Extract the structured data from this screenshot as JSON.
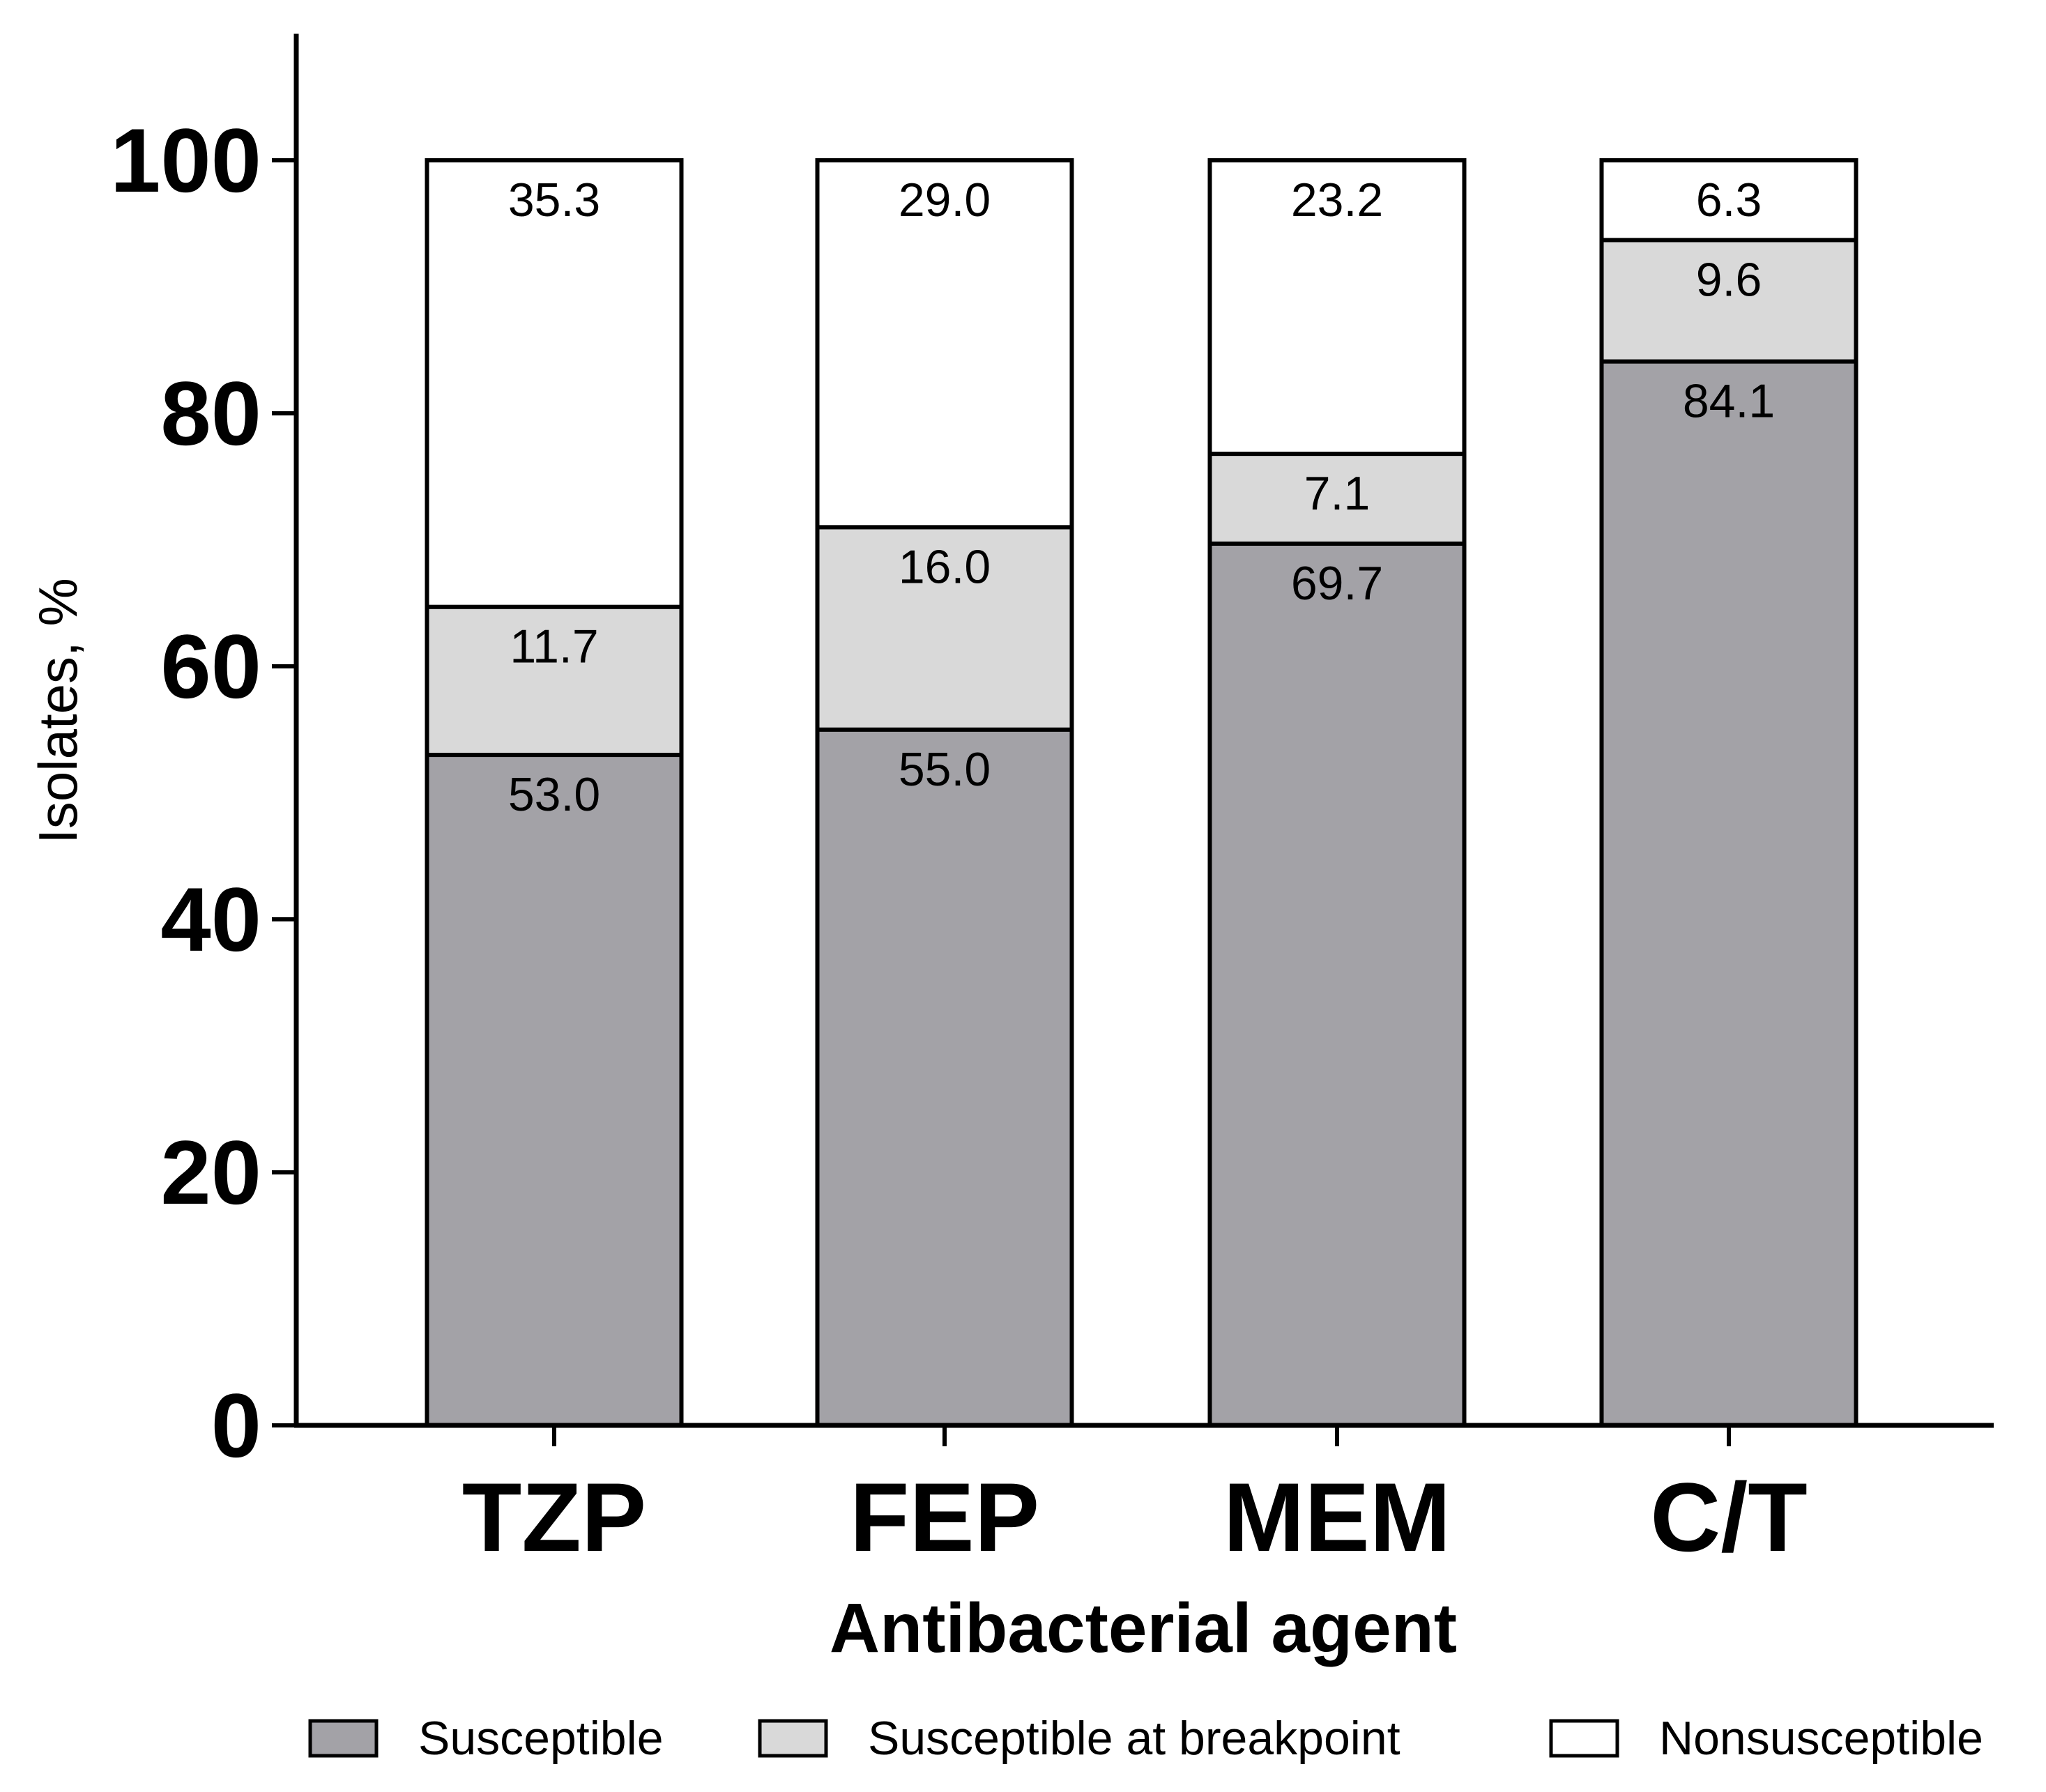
{
  "chart_data": {
    "type": "bar",
    "stacked": true,
    "title": "",
    "xlabel": "Antibacterial agent",
    "ylabel": "Isolates, %",
    "ylim": [
      0,
      110
    ],
    "yticks": [
      0,
      20,
      40,
      60,
      80,
      100
    ],
    "categories": [
      "TZP",
      "FEP",
      "MEM",
      "C/T"
    ],
    "series": [
      {
        "name": "Susceptible",
        "color": "#a3a2a7",
        "values": [
          53.0,
          55.0,
          69.7,
          84.1
        ],
        "labels": [
          "53.0",
          "55.0",
          "69.7",
          "84.1"
        ]
      },
      {
        "name": "Susceptible at breakpoint",
        "color": "#d9d9d9",
        "values": [
          11.7,
          16.0,
          7.1,
          9.6
        ],
        "labels": [
          "11.7",
          "16.0",
          "7.1",
          "9.6"
        ]
      },
      {
        "name": "Nonsusceptible",
        "color": "#ffffff",
        "values": [
          35.3,
          29.0,
          23.2,
          6.3
        ],
        "labels": [
          "35.3",
          "29.0",
          "23.2",
          "6.3"
        ]
      }
    ],
    "legend_position": "bottom"
  }
}
